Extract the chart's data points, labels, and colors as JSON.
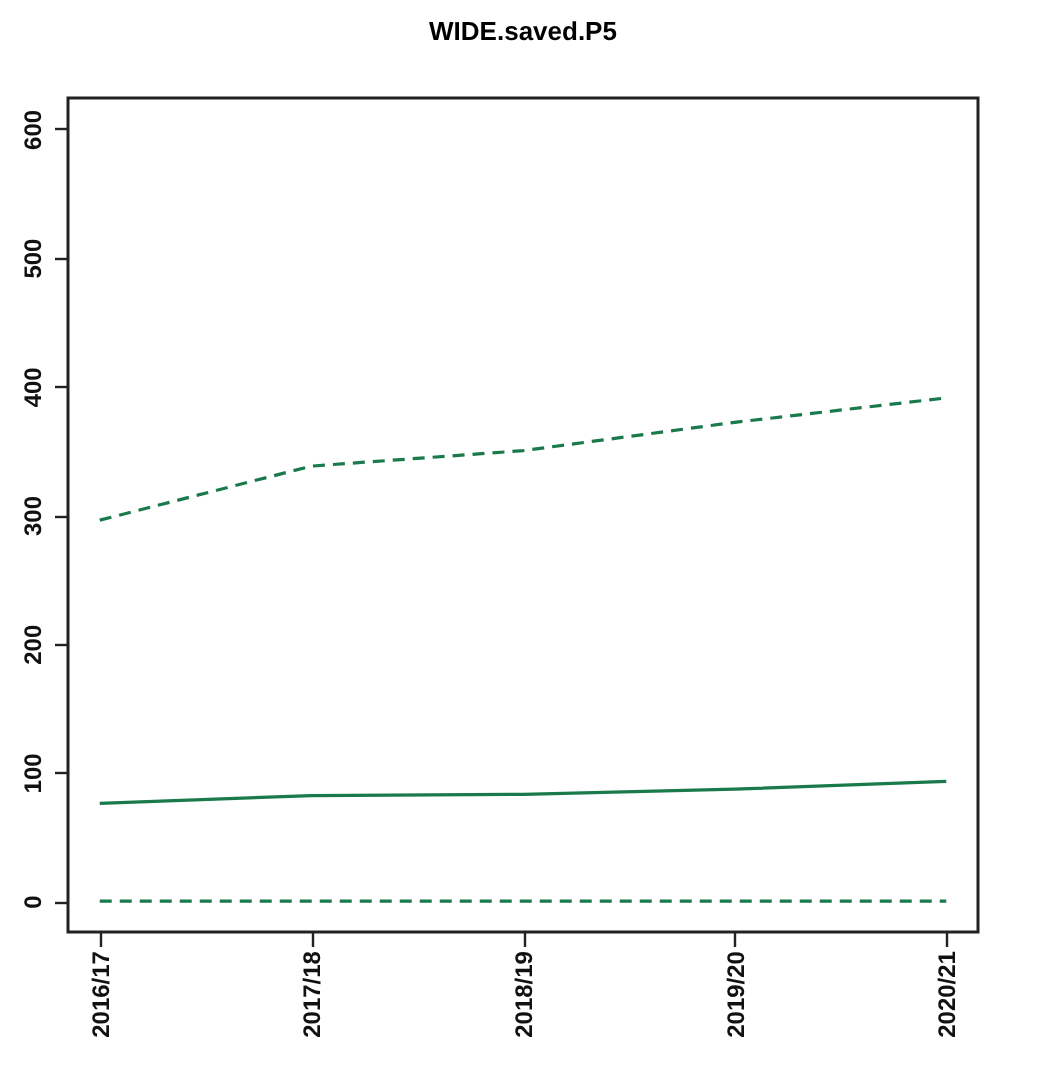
{
  "chart_data": {
    "type": "line",
    "title": "WIDE.saved.P5",
    "categories": [
      "2016/17",
      "2017/18",
      "2018/19",
      "2019/20",
      "2020/21"
    ],
    "series": [
      {
        "color": "#1a7a4c",
        "line_style": "dashed",
        "values": [
          296,
          338,
          350,
          372,
          391
        ]
      },
      {
        "color": "#1a7a4c",
        "line_style": "solid",
        "values": [
          76,
          82,
          83,
          87,
          93
        ]
      },
      {
        "color": "#1a7a4c",
        "line_style": "dashed",
        "values": [
          0,
          0,
          0,
          0,
          0
        ]
      }
    ],
    "ylim": [
      -24,
      624
    ],
    "yticks": [
      0,
      100,
      200,
      300,
      400,
      500,
      600
    ],
    "grid": false,
    "legend": false,
    "marker": "none"
  }
}
